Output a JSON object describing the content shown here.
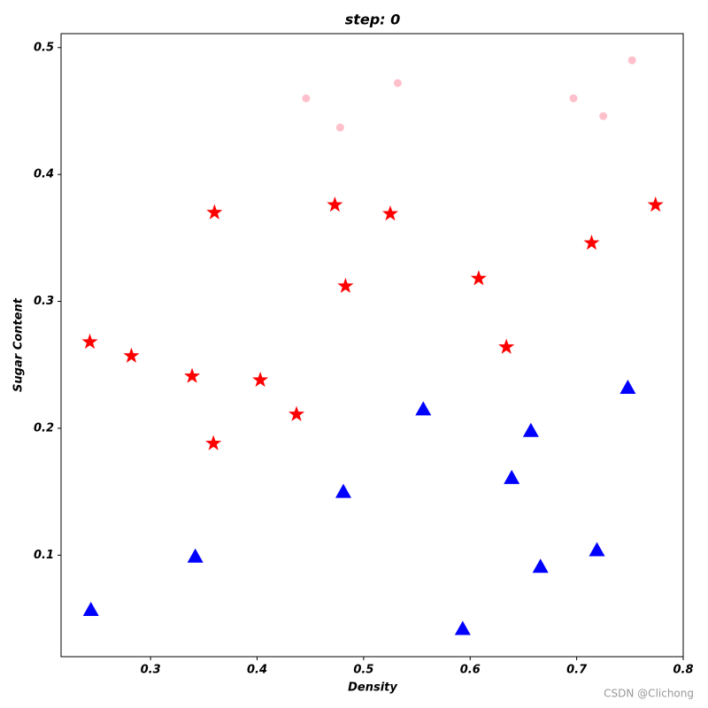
{
  "chart_data": {
    "type": "scatter",
    "title": "step: 0",
    "x_label": "Density",
    "y_label": "Sugar Content",
    "xlim": [
      0.216,
      0.8
    ],
    "ylim": [
      0.02,
      0.511
    ],
    "xticks": [
      0.3,
      0.4,
      0.5,
      0.6,
      0.7,
      0.8
    ],
    "yticks": [
      0.1,
      0.2,
      0.3,
      0.4,
      0.5
    ],
    "series": [
      {
        "color": "pink",
        "marker": "circle",
        "x": [
          0.446,
          0.478,
          0.532,
          0.697,
          0.725,
          0.752
        ],
        "values": [
          0.46,
          0.437,
          0.472,
          0.46,
          0.446,
          0.49
        ]
      },
      {
        "color": "red",
        "marker": "star",
        "x": [
          0.36,
          0.473,
          0.525,
          0.483,
          0.608,
          0.714,
          0.774,
          0.243,
          0.282,
          0.339,
          0.403,
          0.437,
          0.359,
          0.634
        ],
        "values": [
          0.37,
          0.376,
          0.369,
          0.312,
          0.318,
          0.346,
          0.376,
          0.268,
          0.257,
          0.241,
          0.238,
          0.211,
          0.188,
          0.264
        ]
      },
      {
        "color": "blue",
        "marker": "triangle",
        "x": [
          0.556,
          0.657,
          0.748,
          0.639,
          0.481,
          0.342,
          0.244,
          0.593,
          0.666,
          0.719
        ],
        "values": [
          0.215,
          0.198,
          0.232,
          0.161,
          0.15,
          0.099,
          0.057,
          0.042,
          0.091,
          0.104
        ]
      }
    ]
  },
  "watermark": "CSDN @Clichong"
}
